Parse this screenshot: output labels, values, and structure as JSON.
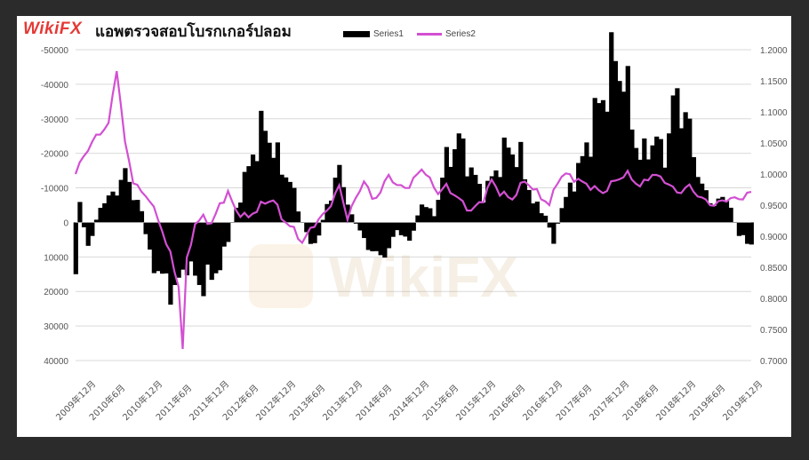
{
  "brand": "WikiFX",
  "title": "แอพตรวจสอบโบรกเกอร์ปลอม",
  "watermark": "WikiFX",
  "colors": {
    "series1": "#000000",
    "series2": "#d34fd3",
    "brand": "#e53935",
    "grid": "#d9d9d9"
  },
  "chart_data": {
    "type": "bar+line",
    "legend_position": "top",
    "grid": true,
    "x_labels": [
      "2009年12月",
      "2010年6月",
      "2010年12月",
      "2011年6月",
      "2011年12月",
      "2012年6月",
      "2012年12月",
      "2013年6月",
      "2013年12月",
      "2014年6月",
      "2014年12月",
      "2015年6月",
      "2015年12月",
      "2016年6月",
      "2016年12月",
      "2017年6月",
      "2017年12月",
      "2018年6月",
      "2018年12月",
      "2019年6月",
      "2019年12月"
    ],
    "y_left": {
      "min": -50000,
      "max": 40000,
      "reversed": true,
      "ticks": [
        "-50000",
        "-40000",
        "-30000",
        "-20000",
        "-10000",
        "0",
        "10000",
        "20000",
        "30000",
        "40000"
      ]
    },
    "y_right": {
      "min": 0.7,
      "max": 1.2,
      "ticks": [
        "1.2000",
        "1.1500",
        "1.1000",
        "1.0500",
        "1.0000",
        "0.9500",
        "0.9000",
        "0.8500",
        "0.8000",
        "0.7500",
        "0.7000"
      ]
    },
    "series": [
      {
        "name": "Series1",
        "type": "bar",
        "axis": "left",
        "anchors": [
          [
            0,
            15000
          ],
          [
            1,
            -5000
          ],
          [
            3,
            8000
          ],
          [
            6,
            -5000
          ],
          [
            9,
            -8000
          ],
          [
            12,
            -14000
          ],
          [
            16,
            -3000
          ],
          [
            18,
            10000
          ],
          [
            21,
            16000
          ],
          [
            24,
            20000
          ],
          [
            27,
            12000
          ],
          [
            30,
            18000
          ],
          [
            33,
            16000
          ],
          [
            36,
            10000
          ],
          [
            38,
            0
          ],
          [
            40,
            -8000
          ],
          [
            43,
            -20000
          ],
          [
            46,
            -28000
          ],
          [
            49,
            -18000
          ],
          [
            52,
            -12000
          ],
          [
            55,
            0
          ],
          [
            58,
            8000
          ],
          [
            61,
            -5000
          ],
          [
            64,
            -15000
          ],
          [
            67,
            -2000
          ],
          [
            70,
            5000
          ],
          [
            73,
            10000
          ],
          [
            76,
            8000
          ],
          [
            78,
            2000
          ],
          [
            81,
            6000
          ],
          [
            84,
            -6000
          ],
          [
            87,
            -2000
          ],
          [
            90,
            -18000
          ],
          [
            93,
            -24000
          ],
          [
            96,
            -15000
          ],
          [
            99,
            -8000
          ],
          [
            102,
            -15000
          ],
          [
            105,
            -22000
          ],
          [
            108,
            -18000
          ],
          [
            111,
            -6000
          ],
          [
            114,
            -2000
          ],
          [
            116,
            5000
          ],
          [
            118,
            -4000
          ],
          [
            120,
            -10000
          ],
          [
            123,
            -18000
          ],
          [
            126,
            -30000
          ],
          [
            129,
            -40000
          ],
          [
            131,
            -48000
          ],
          [
            133,
            -42000
          ],
          [
            135,
            -30000
          ],
          [
            137,
            -18000
          ],
          [
            140,
            -24000
          ],
          [
            143,
            -20000
          ],
          [
            146,
            -38000
          ],
          [
            149,
            -26000
          ],
          [
            152,
            -10000
          ],
          [
            155,
            -5000
          ],
          [
            158,
            -8000
          ],
          [
            161,
            4000
          ],
          [
            164,
            6000
          ]
        ]
      },
      {
        "name": "Series2",
        "type": "line",
        "axis": "right",
        "anchors": [
          [
            0,
            1.0
          ],
          [
            2,
            1.03
          ],
          [
            5,
            1.06
          ],
          [
            8,
            1.08
          ],
          [
            10,
            1.17
          ],
          [
            12,
            1.05
          ],
          [
            14,
            0.99
          ],
          [
            16,
            0.97
          ],
          [
            18,
            0.96
          ],
          [
            21,
            0.91
          ],
          [
            23,
            0.87
          ],
          [
            25,
            0.82
          ],
          [
            26,
            0.72
          ],
          [
            27,
            0.86
          ],
          [
            29,
            0.92
          ],
          [
            31,
            0.93
          ],
          [
            33,
            0.92
          ],
          [
            35,
            0.95
          ],
          [
            37,
            0.97
          ],
          [
            39,
            0.94
          ],
          [
            42,
            0.93
          ],
          [
            45,
            0.95
          ],
          [
            48,
            0.96
          ],
          [
            50,
            0.93
          ],
          [
            53,
            0.91
          ],
          [
            55,
            0.89
          ],
          [
            58,
            0.92
          ],
          [
            61,
            0.94
          ],
          [
            64,
            0.98
          ],
          [
            66,
            0.93
          ],
          [
            68,
            0.96
          ],
          [
            70,
            0.99
          ],
          [
            72,
            0.96
          ],
          [
            74,
            0.97
          ],
          [
            76,
            1.0
          ],
          [
            78,
            0.98
          ],
          [
            81,
            0.98
          ],
          [
            84,
            1.01
          ],
          [
            86,
            0.99
          ],
          [
            88,
            0.97
          ],
          [
            90,
            0.98
          ],
          [
            93,
            0.96
          ],
          [
            96,
            0.94
          ],
          [
            99,
            0.96
          ],
          [
            101,
            0.99
          ],
          [
            103,
            0.97
          ],
          [
            106,
            0.96
          ],
          [
            109,
            0.99
          ],
          [
            112,
            0.97
          ],
          [
            115,
            0.95
          ],
          [
            117,
            0.99
          ],
          [
            119,
            1.0
          ],
          [
            122,
            0.99
          ],
          [
            125,
            0.98
          ],
          [
            128,
            0.97
          ],
          [
            131,
            0.99
          ],
          [
            134,
            1.0
          ],
          [
            137,
            0.98
          ],
          [
            140,
            1.0
          ],
          [
            143,
            0.99
          ],
          [
            146,
            0.97
          ],
          [
            149,
            0.98
          ],
          [
            152,
            0.96
          ],
          [
            155,
            0.95
          ],
          [
            158,
            0.96
          ],
          [
            161,
            0.96
          ],
          [
            164,
            0.97
          ]
        ]
      }
    ]
  }
}
